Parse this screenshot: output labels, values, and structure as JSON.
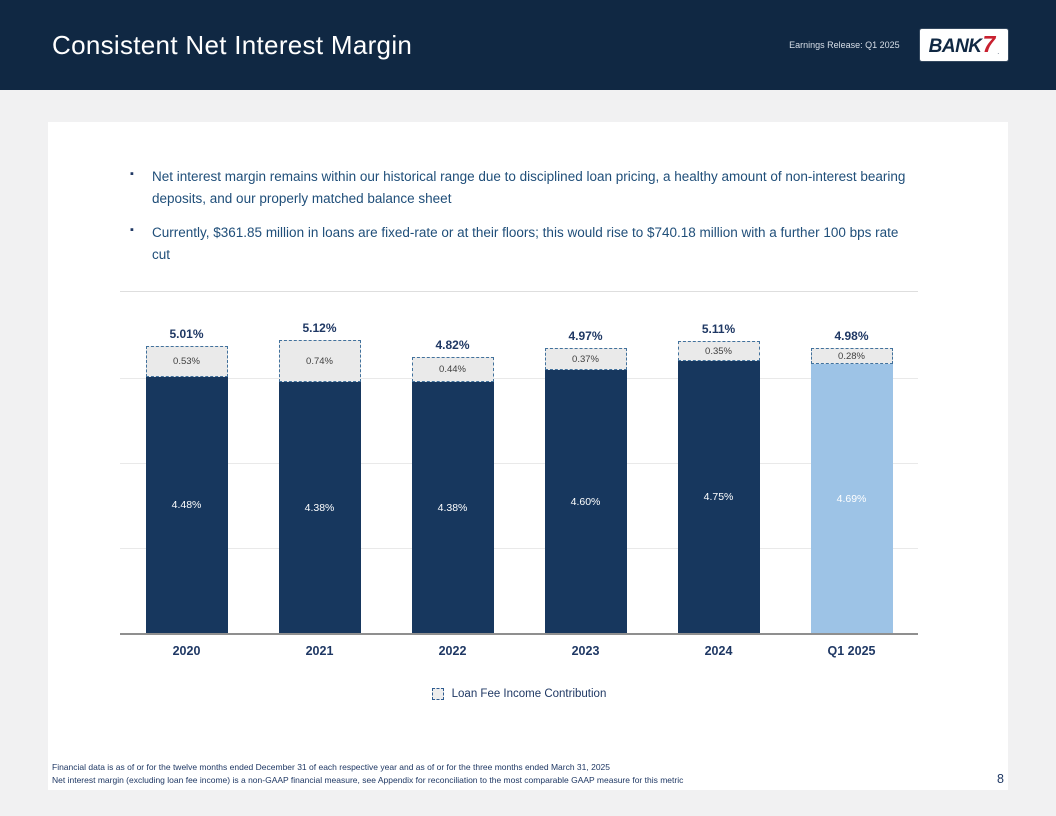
{
  "header": {
    "title": "Consistent Net Interest Margin",
    "subtitle": "Earnings Release: Q1 2025",
    "logo": {
      "text": "BANK",
      "seven": "7",
      "reg": "."
    }
  },
  "bullets": [
    "Net interest margin remains within our historical range due to disciplined loan pricing, a healthy amount of non-interest bearing deposits, and our properly matched balance sheet",
    "Currently, $361.85 million in loans are fixed-rate or at their floors; this would rise to $740.18 million with a further 100 bps rate cut"
  ],
  "chart_data": {
    "type": "bar",
    "subtype": "stacked",
    "categories": [
      "2020",
      "2021",
      "2022",
      "2023",
      "2024",
      "Q1 2025"
    ],
    "series": [
      {
        "name": "Net interest margin (excluding loan fee income)",
        "values": [
          4.48,
          4.38,
          4.38,
          4.6,
          4.75,
          4.69
        ],
        "labels": [
          "4.48%",
          "4.38%",
          "4.38%",
          "4.60%",
          "4.75%",
          "4.69%"
        ]
      },
      {
        "name": "Loan Fee Income Contribution",
        "values": [
          0.53,
          0.74,
          0.44,
          0.37,
          0.35,
          0.28
        ],
        "labels": [
          "0.53%",
          "0.74%",
          "0.44%",
          "0.37%",
          "0.35%",
          "0.28%"
        ]
      }
    ],
    "totals": [
      "5.01%",
      "5.12%",
      "4.82%",
      "4.97%",
      "5.11%",
      "4.98%"
    ],
    "ylim": [
      0,
      6
    ],
    "grid": "horizontal",
    "legend_label": "Loan Fee Income Contribution",
    "legend_position": "bottom-center",
    "highlight_index": 5,
    "colors": {
      "base": "#17375e",
      "base_highlight": "#9dc3e6",
      "fee_fill": "#eaeaea",
      "fee_border": "#41719c",
      "label_navy": "#1f3864"
    }
  },
  "footer": {
    "note1": "Financial data is as of or for the twelve months ended December 31 of each respective year and as of or for the three months ended March 31, 2025",
    "note2": "Net interest margin (excluding loan fee income) is a non-GAAP financial measure, see Appendix for reconciliation to the most comparable GAAP measure for this metric",
    "page_number": "8"
  }
}
